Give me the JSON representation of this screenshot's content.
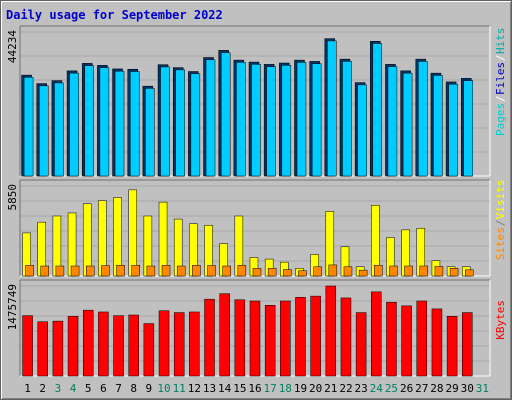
{
  "title": "Daily usage for September 2022",
  "chart_data": [
    {
      "type": "bar",
      "panel": "pages-files-hits",
      "y_max_label": "44234",
      "ylim": [
        0,
        44234
      ],
      "legend": [
        {
          "label": "Pages",
          "color": "#00cccc"
        },
        {
          "label": "Files",
          "color": "#0000cc"
        },
        {
          "label": "Hits",
          "color": "#00aaaa"
        }
      ],
      "separator_color": "#ffffff",
      "series": [
        {
          "name": "Hits",
          "color": "#003366",
          "values": [
            31000,
            28400,
            29300,
            32300,
            34600,
            34000,
            32900,
            32800,
            27600,
            34200,
            33300,
            32100,
            36400,
            38600,
            35600,
            35000,
            34300,
            34700,
            35600,
            35200,
            42200,
            35900,
            28700,
            41400,
            34300,
            32300,
            35900,
            31600,
            28900,
            30000
          ]
        },
        {
          "name": "Files",
          "color": "#00ccff",
          "values": [
            30300,
            27700,
            28600,
            31600,
            33900,
            33300,
            32200,
            32100,
            26900,
            33500,
            32600,
            31400,
            35700,
            37900,
            34900,
            34300,
            33600,
            34000,
            34900,
            34500,
            41500,
            35200,
            28000,
            40700,
            33600,
            31600,
            35200,
            30900,
            28200,
            29300
          ]
        }
      ]
    },
    {
      "type": "bar",
      "panel": "visits-sites",
      "y_max_label": "5850",
      "ylim": [
        0,
        5850
      ],
      "legend": [
        {
          "label": "Sites",
          "color": "#ff8800"
        },
        {
          "label": "Visits",
          "color": "#ffff00"
        }
      ],
      "separator_color": "#808080",
      "series": [
        {
          "name": "Visits",
          "color": "#ffff00",
          "values": [
            2800,
            3500,
            3900,
            4100,
            4700,
            4900,
            5100,
            5600,
            3900,
            4800,
            3700,
            3400,
            3300,
            2100,
            3900,
            1200,
            1100,
            900,
            500,
            1400,
            4200,
            1900,
            600,
            4600,
            2500,
            3000,
            3100,
            1000,
            600,
            600
          ]
        },
        {
          "name": "Sites",
          "color": "#ff8800",
          "values": [
            700,
            650,
            650,
            650,
            650,
            680,
            700,
            700,
            650,
            700,
            650,
            700,
            680,
            650,
            700,
            500,
            500,
            420,
            340,
            600,
            720,
            600,
            380,
            700,
            650,
            650,
            650,
            620,
            500,
            400
          ]
        }
      ]
    },
    {
      "type": "bar",
      "panel": "kbytes",
      "y_max_label": "1475749",
      "ylim": [
        0,
        1475749
      ],
      "legend": [
        {
          "label": "KBytes",
          "color": "#ff0000"
        }
      ],
      "separator_color": "#808080",
      "series": [
        {
          "name": "KBytes",
          "color": "#ff0000",
          "values": [
            990000,
            890000,
            900000,
            980000,
            1080000,
            1050000,
            990000,
            1000000,
            860000,
            1070000,
            1040000,
            1050000,
            1260000,
            1350000,
            1250000,
            1230000,
            1160000,
            1230000,
            1290000,
            1310000,
            1475749,
            1280000,
            1040000,
            1380000,
            1210000,
            1150000,
            1230000,
            1100000,
            980000,
            1040000
          ]
        }
      ]
    }
  ],
  "x_ticks": [
    {
      "label": "1",
      "color": "#000000"
    },
    {
      "label": "2",
      "color": "#000000"
    },
    {
      "label": "3",
      "color": "#00805f"
    },
    {
      "label": "4",
      "color": "#00805f"
    },
    {
      "label": "5",
      "color": "#000000"
    },
    {
      "label": "6",
      "color": "#000000"
    },
    {
      "label": "7",
      "color": "#000000"
    },
    {
      "label": "8",
      "color": "#000000"
    },
    {
      "label": "9",
      "color": "#000000"
    },
    {
      "label": "10",
      "color": "#00805f"
    },
    {
      "label": "11",
      "color": "#00805f"
    },
    {
      "label": "12",
      "color": "#000000"
    },
    {
      "label": "13",
      "color": "#000000"
    },
    {
      "label": "14",
      "color": "#000000"
    },
    {
      "label": "15",
      "color": "#000000"
    },
    {
      "label": "16",
      "color": "#000000"
    },
    {
      "label": "17",
      "color": "#00805f"
    },
    {
      "label": "18",
      "color": "#00805f"
    },
    {
      "label": "19",
      "color": "#000000"
    },
    {
      "label": "20",
      "color": "#000000"
    },
    {
      "label": "21",
      "color": "#000000"
    },
    {
      "label": "22",
      "color": "#000000"
    },
    {
      "label": "23",
      "color": "#000000"
    },
    {
      "label": "24",
      "color": "#00805f"
    },
    {
      "label": "25",
      "color": "#00805f"
    },
    {
      "label": "26",
      "color": "#000000"
    },
    {
      "label": "27",
      "color": "#000000"
    },
    {
      "label": "28",
      "color": "#000000"
    },
    {
      "label": "29",
      "color": "#000000"
    },
    {
      "label": "30",
      "color": "#000000"
    },
    {
      "label": "31",
      "color": "#00805f"
    }
  ]
}
